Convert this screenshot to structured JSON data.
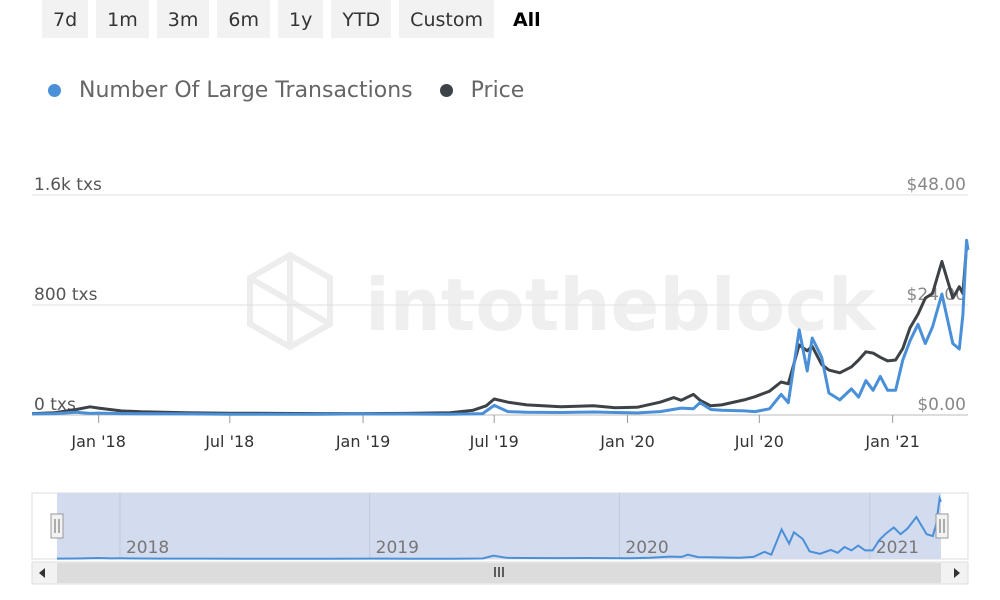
{
  "range_buttons": [
    {
      "label": "7d"
    },
    {
      "label": "1m"
    },
    {
      "label": "3m"
    },
    {
      "label": "6m"
    },
    {
      "label": "1y"
    },
    {
      "label": "YTD"
    },
    {
      "label": "Custom"
    },
    {
      "label": "All"
    }
  ],
  "active_range": "All",
  "watermark": "intotheblock",
  "colors": {
    "transactions": "#4a90d9",
    "price": "#3d4247",
    "navigator_fill": "#d3dbee"
  },
  "chart_data": {
    "type": "line",
    "legend": [
      "Number Of Large Transactions",
      "Price"
    ],
    "y_left": {
      "ticks": [
        "1.6k txs",
        "800 txs",
        "0 txs"
      ],
      "range": [
        0,
        1600
      ]
    },
    "y_right": {
      "ticks": [
        "$48.00",
        "$24.00",
        "$0.00"
      ],
      "range": [
        0,
        48
      ]
    },
    "x_ticks": [
      "Jan '18",
      "Jul '18",
      "Jan '19",
      "Jul '19",
      "Jan '20",
      "Jul '20",
      "Jan '21"
    ],
    "navigator_years": [
      "2018",
      "2019",
      "2020",
      "2021"
    ],
    "x_range": [
      "2017-10-01",
      "2021-04-15"
    ],
    "series": [
      {
        "name": "Number Of Large Transactions",
        "axis": "left",
        "points": [
          [
            "2017-10-01",
            8
          ],
          [
            "2017-11-01",
            10
          ],
          [
            "2017-12-01",
            20
          ],
          [
            "2017-12-20",
            12
          ],
          [
            "2018-01-01",
            14
          ],
          [
            "2018-02-01",
            10
          ],
          [
            "2018-03-01",
            9
          ],
          [
            "2018-05-01",
            8
          ],
          [
            "2018-07-01",
            6
          ],
          [
            "2018-09-01",
            5
          ],
          [
            "2018-11-01",
            6
          ],
          [
            "2019-01-01",
            8
          ],
          [
            "2019-03-01",
            7
          ],
          [
            "2019-05-01",
            6
          ],
          [
            "2019-06-15",
            10
          ],
          [
            "2019-07-01",
            70
          ],
          [
            "2019-07-20",
            25
          ],
          [
            "2019-08-15",
            20
          ],
          [
            "2019-10-01",
            18
          ],
          [
            "2019-11-15",
            22
          ],
          [
            "2019-12-15",
            18
          ],
          [
            "2020-01-15",
            15
          ],
          [
            "2020-02-15",
            25
          ],
          [
            "2020-03-15",
            50
          ],
          [
            "2020-04-01",
            45
          ],
          [
            "2020-04-10",
            90
          ],
          [
            "2020-04-25",
            40
          ],
          [
            "2020-05-10",
            35
          ],
          [
            "2020-06-10",
            30
          ],
          [
            "2020-06-25",
            25
          ],
          [
            "2020-07-15",
            45
          ],
          [
            "2020-07-31",
            150
          ],
          [
            "2020-08-10",
            90
          ],
          [
            "2020-08-25",
            620
          ],
          [
            "2020-09-05",
            320
          ],
          [
            "2020-09-12",
            560
          ],
          [
            "2020-09-25",
            420
          ],
          [
            "2020-10-05",
            160
          ],
          [
            "2020-10-20",
            110
          ],
          [
            "2020-11-05",
            190
          ],
          [
            "2020-11-15",
            130
          ],
          [
            "2020-11-25",
            250
          ],
          [
            "2020-12-05",
            180
          ],
          [
            "2020-12-15",
            280
          ],
          [
            "2020-12-25",
            180
          ],
          [
            "2021-01-05",
            180
          ],
          [
            "2021-01-15",
            400
          ],
          [
            "2021-01-25",
            540
          ],
          [
            "2021-02-05",
            660
          ],
          [
            "2021-02-15",
            520
          ],
          [
            "2021-02-25",
            640
          ],
          [
            "2021-03-10",
            880
          ],
          [
            "2021-03-25",
            520
          ],
          [
            "2021-04-03",
            480
          ],
          [
            "2021-04-08",
            730
          ],
          [
            "2021-04-13",
            1270
          ],
          [
            "2021-04-15",
            1200
          ]
        ]
      },
      {
        "name": "Price",
        "axis": "right",
        "points": [
          [
            "2017-10-01",
            0.3
          ],
          [
            "2017-11-01",
            0.5
          ],
          [
            "2017-12-01",
            1.2
          ],
          [
            "2017-12-20",
            1.8
          ],
          [
            "2018-01-01",
            1.5
          ],
          [
            "2018-02-01",
            0.9
          ],
          [
            "2018-03-01",
            0.7
          ],
          [
            "2018-05-01",
            0.5
          ],
          [
            "2018-07-01",
            0.4
          ],
          [
            "2018-09-01",
            0.35
          ],
          [
            "2018-11-01",
            0.3
          ],
          [
            "2019-01-01",
            0.3
          ],
          [
            "2019-03-01",
            0.35
          ],
          [
            "2019-05-01",
            0.5
          ],
          [
            "2019-06-01",
            1.0
          ],
          [
            "2019-06-20",
            2.0
          ],
          [
            "2019-07-01",
            3.5
          ],
          [
            "2019-07-20",
            2.8
          ],
          [
            "2019-08-15",
            2.2
          ],
          [
            "2019-10-01",
            1.8
          ],
          [
            "2019-11-15",
            2.0
          ],
          [
            "2019-12-15",
            1.6
          ],
          [
            "2020-01-15",
            1.7
          ],
          [
            "2020-02-15",
            2.8
          ],
          [
            "2020-03-05",
            3.8
          ],
          [
            "2020-03-15",
            3.2
          ],
          [
            "2020-04-01",
            4.5
          ],
          [
            "2020-04-10",
            3.2
          ],
          [
            "2020-04-25",
            2.0
          ],
          [
            "2020-05-10",
            2.2
          ],
          [
            "2020-06-10",
            3.3
          ],
          [
            "2020-06-25",
            4.0
          ],
          [
            "2020-07-15",
            5.2
          ],
          [
            "2020-07-31",
            7.2
          ],
          [
            "2020-08-10",
            6.8
          ],
          [
            "2020-08-25",
            15.3
          ],
          [
            "2020-09-05",
            14.0
          ],
          [
            "2020-09-12",
            15.0
          ],
          [
            "2020-09-25",
            11.0
          ],
          [
            "2020-10-05",
            9.8
          ],
          [
            "2020-10-20",
            9.2
          ],
          [
            "2020-11-05",
            10.5
          ],
          [
            "2020-11-15",
            12.0
          ],
          [
            "2020-11-25",
            13.8
          ],
          [
            "2020-12-05",
            13.5
          ],
          [
            "2020-12-15",
            12.6
          ],
          [
            "2020-12-25",
            11.8
          ],
          [
            "2021-01-05",
            12.0
          ],
          [
            "2021-01-15",
            14.5
          ],
          [
            "2021-01-25",
            19.0
          ],
          [
            "2021-02-05",
            22.0
          ],
          [
            "2021-02-15",
            25.5
          ],
          [
            "2021-02-25",
            26.5
          ],
          [
            "2021-03-10",
            33.5
          ],
          [
            "2021-03-25",
            25.5
          ],
          [
            "2021-04-03",
            28.0
          ],
          [
            "2021-04-08",
            26.5
          ],
          [
            "2021-04-13",
            37.0
          ],
          [
            "2021-04-15",
            36.5
          ]
        ]
      }
    ],
    "grid": true
  }
}
